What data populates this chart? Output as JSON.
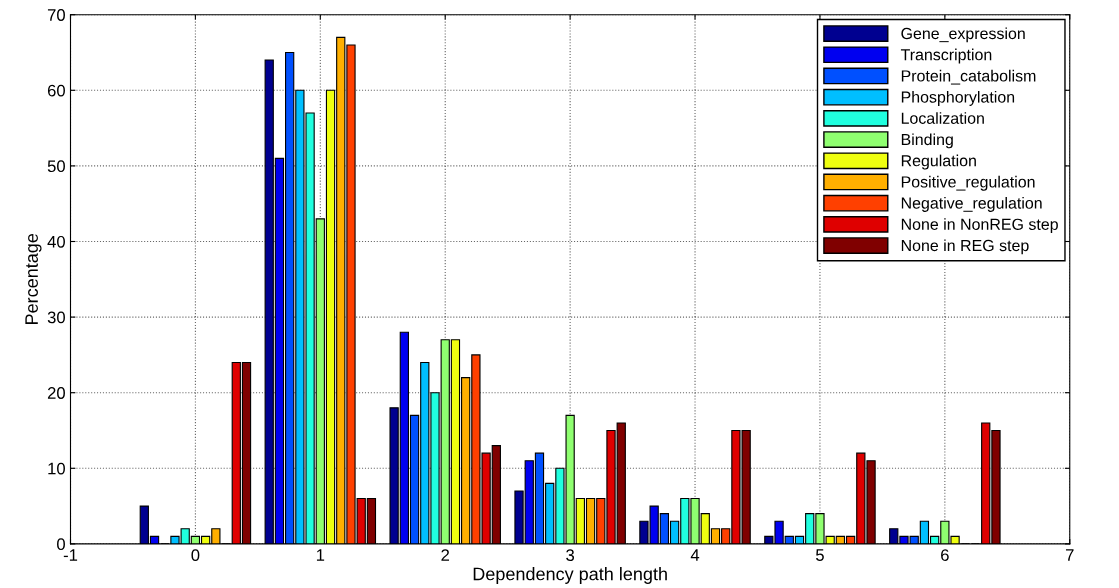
{
  "chart_data": {
    "type": "bar",
    "xlabel": "Dependency path length",
    "ylabel": "Percentage",
    "x": [
      0,
      1,
      2,
      3,
      4,
      5,
      6
    ],
    "xlim": [
      -1,
      7
    ],
    "xticks": [
      -1,
      0,
      1,
      2,
      3,
      4,
      5,
      6,
      7
    ],
    "ylim": [
      0,
      70
    ],
    "yticks": [
      0,
      10,
      20,
      30,
      40,
      50,
      60,
      70
    ],
    "grid": true,
    "line_style": "dotted",
    "legend": "top right",
    "series": [
      {
        "name": "Gene_expression",
        "color": "#000090",
        "values": [
          5,
          64,
          18,
          7,
          3,
          1,
          2
        ]
      },
      {
        "name": "Transcription",
        "color": "#0000f0",
        "values": [
          1,
          51,
          28,
          11,
          5,
          3,
          1
        ]
      },
      {
        "name": "Protein_catabolism",
        "color": "#0050ff",
        "values": [
          0,
          65,
          17,
          12,
          4,
          1,
          1
        ]
      },
      {
        "name": "Phosphorylation",
        "color": "#00bfff",
        "values": [
          1,
          60,
          24,
          8,
          3,
          1,
          3
        ]
      },
      {
        "name": "Localization",
        "color": "#20ffdf",
        "values": [
          2,
          57,
          20,
          10,
          6,
          4,
          1
        ]
      },
      {
        "name": "Binding",
        "color": "#8fff70",
        "values": [
          1,
          43,
          27,
          17,
          6,
          4,
          3
        ]
      },
      {
        "name": "Regulation",
        "color": "#efff10",
        "values": [
          1,
          60,
          27,
          6,
          4,
          1,
          1
        ]
      },
      {
        "name": "Positive_regulation",
        "color": "#ffaf00",
        "values": [
          2,
          67,
          22,
          6,
          2,
          1,
          0
        ]
      },
      {
        "name": "Negative_regulation",
        "color": "#ff4000",
        "values": [
          0,
          66,
          25,
          6,
          2,
          1,
          0
        ]
      },
      {
        "name": "None in NonREG step",
        "color": "#df0000",
        "values": [
          24,
          6,
          12,
          15,
          15,
          12,
          16
        ]
      },
      {
        "name": "None in REG step",
        "color": "#800000",
        "values": [
          24,
          6,
          13,
          16,
          15,
          11,
          15
        ]
      }
    ]
  }
}
